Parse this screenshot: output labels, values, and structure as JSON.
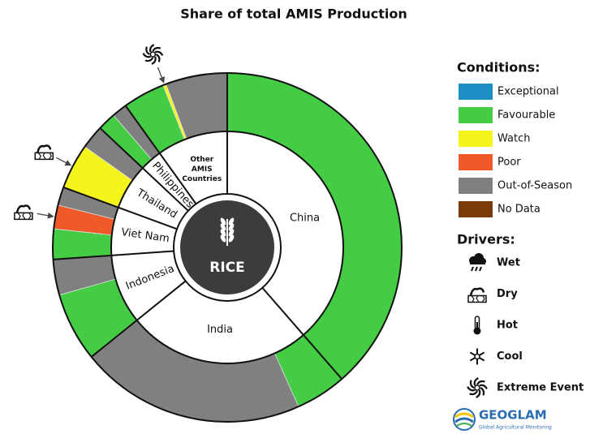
{
  "chart_data": {
    "type": "donut",
    "title": "Share of total AMIS Production",
    "center_label": "RICE",
    "countries": [
      {
        "name": "China",
        "value": 38.6,
        "segments": [
          {
            "condition": "Favourable",
            "value": 38.6
          }
        ]
      },
      {
        "name": "India",
        "value": 25.6,
        "segments": [
          {
            "condition": "Favourable",
            "value": 4.7
          },
          {
            "condition": "Out-of-Season",
            "value": 20.9
          }
        ]
      },
      {
        "name": "Indonesia",
        "value": 9.7,
        "segments": [
          {
            "condition": "Favourable",
            "value": 6.4
          },
          {
            "condition": "Out-of-Season",
            "value": 3.3
          }
        ]
      },
      {
        "name": "Viet Nam",
        "value": 6.7,
        "segments": [
          {
            "condition": "Favourable",
            "value": 2.8
          },
          {
            "condition": "Poor",
            "value": 2.2,
            "driver": "Dry"
          },
          {
            "condition": "Out-of-Season",
            "value": 1.7
          }
        ]
      },
      {
        "name": "Thailand",
        "value": 6.4,
        "segments": [
          {
            "condition": "Watch",
            "value": 4.2,
            "driver": "Dry"
          },
          {
            "condition": "Out-of-Season",
            "value": 2.2
          }
        ]
      },
      {
        "name": "Philippines",
        "value": 3.1,
        "segments": [
          {
            "condition": "Favourable",
            "value": 1.7
          },
          {
            "condition": "Out-of-Season",
            "value": 1.4
          }
        ]
      },
      {
        "name": "Other AMIS Countries",
        "value": 9.9,
        "segments": [
          {
            "condition": "Favourable",
            "value": 3.9
          },
          {
            "condition": "Watch",
            "value": 0.3,
            "driver": "Extreme Event"
          },
          {
            "condition": "Out-of-Season",
            "value": 5.7
          }
        ]
      }
    ],
    "legend": {
      "conditions_title": "Conditions:",
      "conditions": [
        {
          "name": "Exceptional",
          "color": "#1e8fc6"
        },
        {
          "name": "Favourable",
          "color": "#44cc44"
        },
        {
          "name": "Watch",
          "color": "#f5f51e"
        },
        {
          "name": "Poor",
          "color": "#f05a28"
        },
        {
          "name": "Out-of-Season",
          "color": "#808080"
        },
        {
          "name": "No Data",
          "color": "#7a3a0a"
        }
      ],
      "drivers_title": "Drivers:",
      "drivers": [
        "Wet",
        "Dry",
        "Hot",
        "Cool",
        "Extreme Event"
      ]
    },
    "logo": {
      "name": "GEOGLAM",
      "tagline": "Global Agricultural Monitoring"
    }
  }
}
